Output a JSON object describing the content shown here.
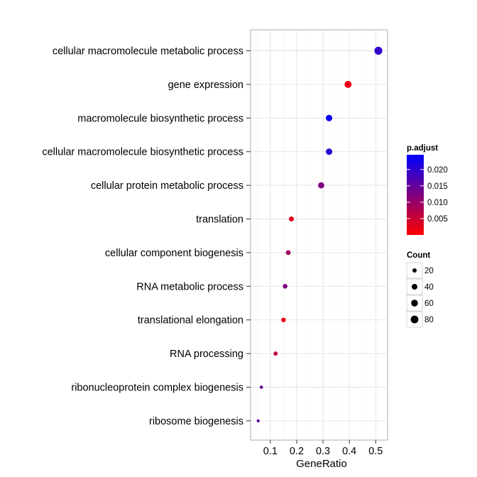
{
  "chart_data": {
    "type": "scatter",
    "title": "",
    "xlabel": "GeneRatio",
    "ylabel": "",
    "xlim": [
      0.025,
      0.545
    ],
    "x_ticks": [
      0.1,
      0.2,
      0.3,
      0.4,
      0.5
    ],
    "x_tick_labels": [
      "0.1",
      "0.2",
      "0.3",
      "0.4",
      "0.5"
    ],
    "grid": true,
    "categories": [
      "cellular macromolecule metabolic process",
      "gene expression",
      "macromolecule biosynthetic process",
      "cellular macromolecule biosynthetic process",
      "cellular protein metabolic process",
      "translation",
      "cellular component biogenesis",
      "RNA metabolic process",
      "translational elongation",
      "RNA processing",
      "ribonucleoprotein complex biogenesis",
      "ribosome biogenesis"
    ],
    "points": [
      {
        "term": "cellular macromolecule metabolic process",
        "gene_ratio": 0.51,
        "count": 85,
        "p_adjust": 0.0195
      },
      {
        "term": "gene expression",
        "gene_ratio": 0.395,
        "count": 66,
        "p_adjust": 0.0015
      },
      {
        "term": "macromolecule biosynthetic process",
        "gene_ratio": 0.323,
        "count": 54,
        "p_adjust": 0.0235
      },
      {
        "term": "cellular macromolecule biosynthetic process",
        "gene_ratio": 0.323,
        "count": 54,
        "p_adjust": 0.0205
      },
      {
        "term": "cellular protein metabolic process",
        "gene_ratio": 0.293,
        "count": 49,
        "p_adjust": 0.0125
      },
      {
        "term": "translation",
        "gene_ratio": 0.18,
        "count": 30,
        "p_adjust": 0.0025
      },
      {
        "term": "cellular component biogenesis",
        "gene_ratio": 0.168,
        "count": 28,
        "p_adjust": 0.009
      },
      {
        "term": "RNA metabolic process",
        "gene_ratio": 0.156,
        "count": 26,
        "p_adjust": 0.0125
      },
      {
        "term": "translational elongation",
        "gene_ratio": 0.15,
        "count": 25,
        "p_adjust": 0.0025
      },
      {
        "term": "RNA processing",
        "gene_ratio": 0.12,
        "count": 20,
        "p_adjust": 0.006
      },
      {
        "term": "ribonucleoprotein complex biogenesis",
        "gene_ratio": 0.066,
        "count": 11,
        "p_adjust": 0.0145
      },
      {
        "term": "ribosome biogenesis",
        "gene_ratio": 0.054,
        "count": 9,
        "p_adjust": 0.0155
      }
    ],
    "color_legend": {
      "title": "p.adjust",
      "range": [
        0.0,
        0.0245
      ],
      "tick_values": [
        0.005,
        0.01,
        0.015,
        0.02
      ],
      "tick_labels": [
        "0.005",
        "0.010",
        "0.015",
        "0.020"
      ],
      "low_color": "#ff0000",
      "high_color": "#0000ff"
    },
    "size_legend": {
      "title": "Count",
      "values": [
        20,
        40,
        60,
        80
      ],
      "labels": [
        "20",
        "40",
        "60",
        "80"
      ]
    }
  }
}
